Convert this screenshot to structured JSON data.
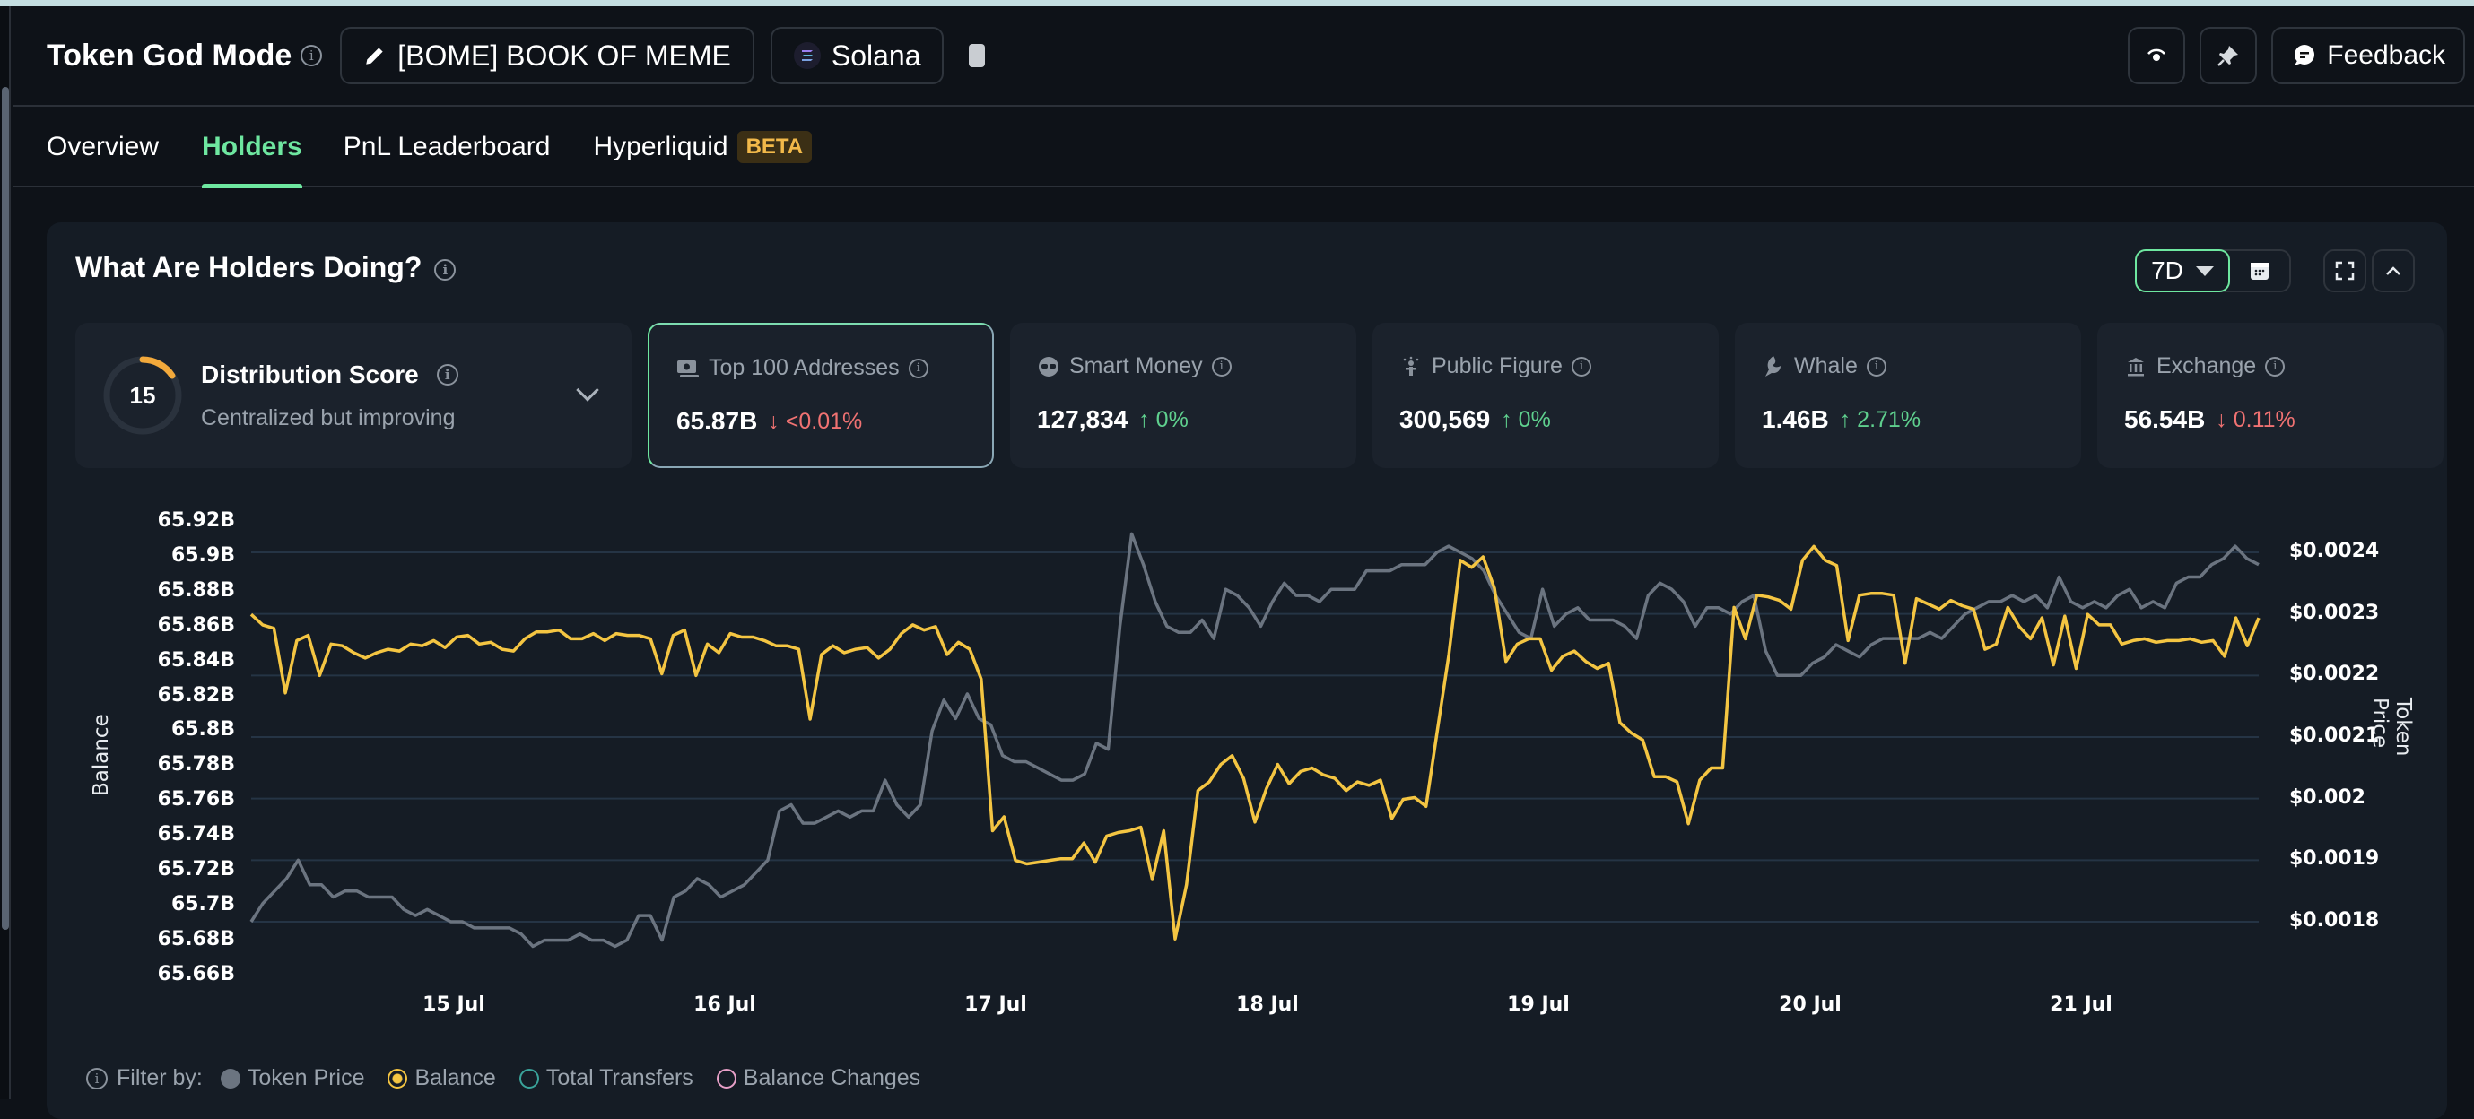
{
  "header": {
    "title": "Token God Mode",
    "token_label": "[BOME] BOOK OF MEME",
    "chain_label": "Solana",
    "feedback_label": "Feedback"
  },
  "tabs": [
    {
      "label": "Overview",
      "active": false
    },
    {
      "label": "Holders",
      "active": true
    },
    {
      "label": "PnL Leaderboard",
      "active": false
    },
    {
      "label": "Hyperliquid",
      "badge": "BETA",
      "active": false
    }
  ],
  "panel": {
    "title": "What Are Holders Doing?",
    "range_label": "7D"
  },
  "distribution": {
    "score": "15",
    "title": "Distribution Score",
    "subtitle": "Centralized but improving"
  },
  "stats": [
    {
      "label": "Top 100 Addresses",
      "value": "65.87B",
      "change": "<0.01%",
      "direction": "down",
      "icon": "money-stack-icon",
      "selected": true
    },
    {
      "label": "Smart Money",
      "value": "127,834",
      "change": "0%",
      "direction": "up",
      "icon": "sunglasses-icon",
      "selected": false
    },
    {
      "label": "Public Figure",
      "value": "300,569",
      "change": "0%",
      "direction": "up",
      "icon": "public-figure-icon",
      "selected": false
    },
    {
      "label": "Whale",
      "value": "1.46B",
      "change": "2.71%",
      "direction": "up",
      "icon": "whale-icon",
      "selected": false
    },
    {
      "label": "Exchange",
      "value": "56.54B",
      "change": "0.11%",
      "direction": "down",
      "icon": "bank-icon",
      "selected": false
    }
  ],
  "filter": {
    "label": "Filter by:",
    "items": [
      {
        "label": "Token Price",
        "color": "#6b7480",
        "style": "filled"
      },
      {
        "label": "Balance",
        "color": "#f4c542",
        "style": "selected"
      },
      {
        "label": "Total Transfers",
        "color": "#3aa39a",
        "style": "outline"
      },
      {
        "label": "Balance Changes",
        "color": "#e8a0c8",
        "style": "outline"
      }
    ]
  },
  "colors": {
    "accent": "#6ee7a0",
    "balance_line": "#f4c542",
    "price_line": "#6b7480",
    "up": "#5fd08e",
    "down": "#f07272",
    "gridline": "#253445"
  },
  "chart_data": {
    "type": "line",
    "title": "What Are Holders Doing?",
    "xlabel": "",
    "ylabel": "Balance",
    "y2label": "Token Price",
    "x_ticks": [
      "15 Jul",
      "16 Jul",
      "17 Jul",
      "18 Jul",
      "19 Jul",
      "20 Jul",
      "21 Jul"
    ],
    "y_ticks_left": [
      "65.92B",
      "65.9B",
      "65.88B",
      "65.86B",
      "65.84B",
      "65.82B",
      "65.8B",
      "65.78B",
      "65.76B",
      "65.74B",
      "65.72B",
      "65.7B",
      "65.68B",
      "65.66B"
    ],
    "y_ticks_right": [
      "$0.0024",
      "$0.0023",
      "$0.0022",
      "$0.0021",
      "$0.002",
      "$0.0019",
      "$0.0018"
    ],
    "ylim_left": [
      65.66,
      65.92
    ],
    "ylim_right": [
      0.00175,
      0.00245
    ],
    "grid": true,
    "legend_position": "bottom",
    "series": [
      {
        "name": "Balance",
        "axis": "left",
        "unit": "B",
        "x_range": [
          "14 Jul 07:00",
          "21 Jul 16:00"
        ],
        "values": [
          65.868,
          65.862,
          65.86,
          65.823,
          65.853,
          65.856,
          65.833,
          65.851,
          65.85,
          65.846,
          65.843,
          65.846,
          65.848,
          65.847,
          65.851,
          65.85,
          65.853,
          65.849,
          65.855,
          65.856,
          65.851,
          65.852,
          65.848,
          65.847,
          65.854,
          65.858,
          65.858,
          65.859,
          65.854,
          65.854,
          65.857,
          65.853,
          65.857,
          65.856,
          65.856,
          65.854,
          65.834,
          65.856,
          65.859,
          65.833,
          65.851,
          65.846,
          65.857,
          65.855,
          65.855,
          65.853,
          65.85,
          65.85,
          65.848,
          65.808,
          65.845,
          65.85,
          65.846,
          65.848,
          65.849,
          65.843,
          65.848,
          65.857,
          65.862,
          65.859,
          65.861,
          65.845,
          65.852,
          65.848,
          65.831,
          65.744,
          65.752,
          65.727,
          65.725,
          65.726,
          65.727,
          65.728,
          65.728,
          65.737,
          65.726,
          65.741,
          65.743,
          65.744,
          65.746,
          65.716,
          65.744,
          65.682,
          65.713,
          65.767,
          65.772,
          65.782,
          65.787,
          65.774,
          65.749,
          65.768,
          65.782,
          65.771,
          65.778,
          65.78,
          65.776,
          65.774,
          65.767,
          65.772,
          65.77,
          65.773,
          65.751,
          65.762,
          65.763,
          65.758,
          65.802,
          65.845,
          65.899,
          65.895,
          65.901,
          65.883,
          65.841,
          65.851,
          65.854,
          65.854,
          65.836,
          65.844,
          65.847,
          65.841,
          65.837,
          65.84,
          65.806,
          65.8,
          65.796,
          65.775,
          65.775,
          65.772,
          65.748,
          65.773,
          65.78,
          65.78,
          65.872,
          65.854,
          65.879,
          65.878,
          65.876,
          65.871,
          65.899,
          65.907,
          65.899,
          65.896,
          65.853,
          65.879,
          65.88,
          65.88,
          65.879,
          65.84,
          65.877,
          65.874,
          65.871,
          65.876,
          65.873,
          65.871,
          65.848,
          65.851,
          65.872,
          65.861,
          65.854,
          65.866,
          65.839,
          65.867,
          65.837,
          65.868,
          65.862,
          65.862,
          65.851,
          65.853,
          65.854,
          65.852,
          65.853,
          65.853,
          65.854,
          65.852,
          65.853,
          65.844,
          65.866,
          65.85,
          65.866
        ]
      },
      {
        "name": "Token Price",
        "axis": "right",
        "unit": "USD",
        "x_range": [
          "14 Jul 07:00",
          "21 Jul 16:00"
        ],
        "values": [
          0.0018,
          0.00183,
          0.00185,
          0.00187,
          0.0019,
          0.00186,
          0.00186,
          0.00184,
          0.00185,
          0.00185,
          0.00184,
          0.00184,
          0.00184,
          0.00182,
          0.00181,
          0.00182,
          0.00181,
          0.0018,
          0.0018,
          0.00179,
          0.00179,
          0.00179,
          0.00179,
          0.00178,
          0.00176,
          0.00177,
          0.00177,
          0.00177,
          0.00178,
          0.00177,
          0.00177,
          0.00176,
          0.00177,
          0.00181,
          0.00181,
          0.00177,
          0.00184,
          0.00185,
          0.00187,
          0.00186,
          0.00184,
          0.00185,
          0.00186,
          0.00188,
          0.0019,
          0.00198,
          0.00199,
          0.00196,
          0.00196,
          0.00197,
          0.00198,
          0.00197,
          0.00198,
          0.00198,
          0.00203,
          0.00199,
          0.00197,
          0.00199,
          0.00211,
          0.00216,
          0.00213,
          0.00217,
          0.00213,
          0.00212,
          0.00207,
          0.00206,
          0.00206,
          0.00205,
          0.00204,
          0.00203,
          0.00203,
          0.00204,
          0.00209,
          0.00208,
          0.00228,
          0.00243,
          0.00238,
          0.00232,
          0.00228,
          0.00227,
          0.00227,
          0.00229,
          0.00226,
          0.00234,
          0.00233,
          0.00231,
          0.00228,
          0.00232,
          0.00235,
          0.00233,
          0.00233,
          0.00232,
          0.00234,
          0.00234,
          0.00234,
          0.00237,
          0.00237,
          0.00237,
          0.00238,
          0.00238,
          0.00238,
          0.0024,
          0.00241,
          0.0024,
          0.00239,
          0.00237,
          0.00233,
          0.0023,
          0.00227,
          0.00226,
          0.00234,
          0.00228,
          0.0023,
          0.00231,
          0.00229,
          0.00229,
          0.00229,
          0.00228,
          0.00226,
          0.00233,
          0.00235,
          0.00234,
          0.00232,
          0.00228,
          0.00231,
          0.00231,
          0.0023,
          0.00232,
          0.00233,
          0.00224,
          0.0022,
          0.0022,
          0.0022,
          0.00222,
          0.00223,
          0.00225,
          0.00224,
          0.00223,
          0.00225,
          0.00226,
          0.00226,
          0.00226,
          0.00226,
          0.00227,
          0.00226,
          0.00228,
          0.0023,
          0.00231,
          0.00232,
          0.00232,
          0.00233,
          0.00232,
          0.00233,
          0.00231,
          0.00236,
          0.00232,
          0.00231,
          0.00232,
          0.00231,
          0.00233,
          0.00234,
          0.00231,
          0.00232,
          0.00231,
          0.00235,
          0.00236,
          0.00236,
          0.00238,
          0.00239,
          0.00241,
          0.00239,
          0.00238
        ]
      }
    ]
  }
}
